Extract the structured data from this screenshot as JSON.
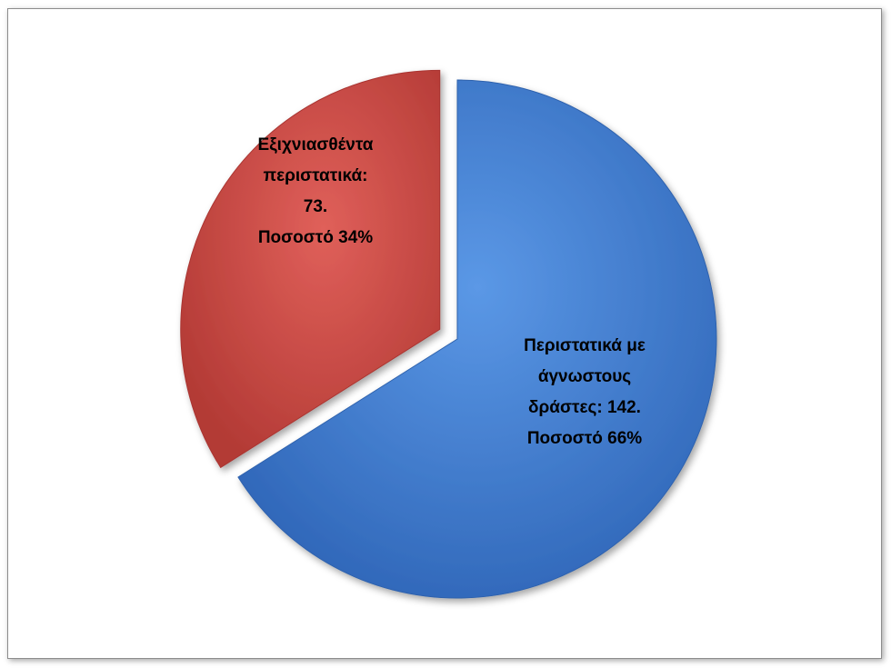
{
  "chart_data": {
    "type": "pie",
    "exploded": true,
    "start_angle_deg": 0,
    "direction": "clockwise",
    "slices": [
      {
        "label_lines": [
          "Περιστατικά με",
          "άγνωστους",
          "δράστες: 142.",
          "Ποσοστό 66%"
        ],
        "value": 142,
        "percent": 66,
        "color": "#3f7fd6",
        "color_dark": "#2f62ad"
      },
      {
        "label_lines": [
          "Εξιχνιασθέντα",
          "περιστατικά:",
          "73.",
          "Ποσοστό 34%"
        ],
        "value": 73,
        "percent": 34,
        "color": "#d84a44",
        "color_dark": "#a93430"
      }
    ]
  }
}
